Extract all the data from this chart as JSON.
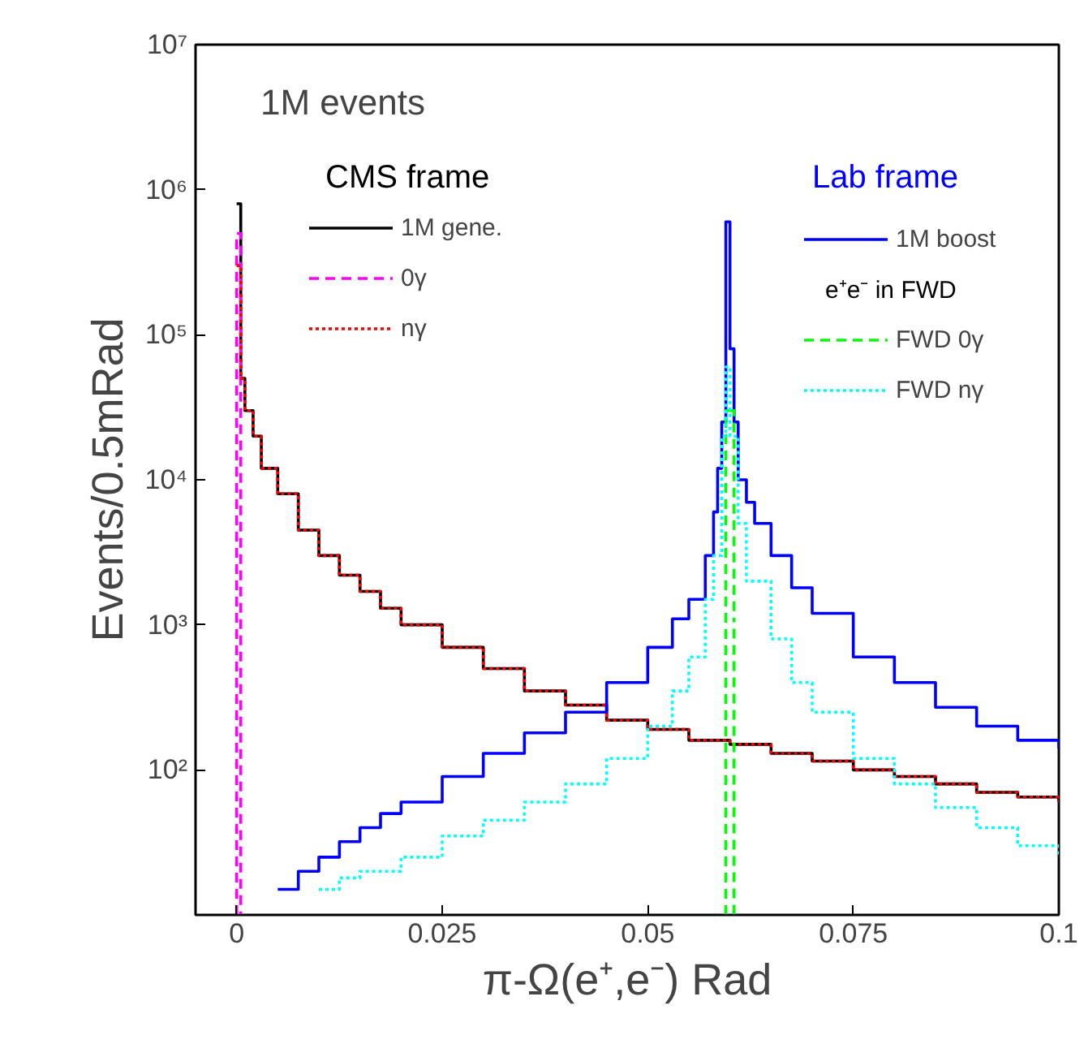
{
  "chart_data": {
    "type": "step",
    "title": "1M events",
    "xlabel": "π-Ω(e⁺,e⁻) Rad",
    "ylabel": "Events/0.5mRad",
    "log": "y",
    "xlim": [
      -0.005,
      0.1
    ],
    "ylim": [
      10,
      10000000
    ],
    "xticks": [
      0,
      0.025,
      0.05,
      0.075,
      0.1
    ],
    "yticks": [
      {
        "value": 100,
        "label": "10²"
      },
      {
        "value": 1000,
        "label": "10³"
      },
      {
        "value": 10000,
        "label": "10⁴"
      },
      {
        "value": 100000,
        "label": "10⁵"
      },
      {
        "value": 1000000,
        "label": "10⁶"
      },
      {
        "value": 10000000,
        "label": "10⁷"
      }
    ],
    "grid": false,
    "legend": "top",
    "marker": "none",
    "annotations": [
      "CMS frame",
      "Lab frame",
      "e⁺e⁻ in FWD"
    ],
    "series": [
      {
        "name": "1M gene.",
        "color": "#000000",
        "line_style": "solid",
        "x": [
          0,
          0.0005,
          0.001,
          0.002,
          0.003,
          0.005,
          0.0075,
          0.01,
          0.0125,
          0.015,
          0.0175,
          0.02,
          0.025,
          0.03,
          0.035,
          0.04,
          0.045,
          0.05,
          0.055,
          0.06,
          0.065,
          0.07,
          0.075,
          0.08,
          0.085,
          0.09,
          0.095,
          0.1
        ],
        "values": [
          800000,
          50000,
          30000,
          20000,
          12000,
          8000,
          4500,
          3000,
          2200,
          1700,
          1300,
          1000,
          700,
          500,
          350,
          280,
          220,
          190,
          160,
          150,
          130,
          115,
          100,
          90,
          80,
          70,
          65,
          60
        ]
      },
      {
        "name": "0γ",
        "color": "#ff00ff",
        "line_style": "dashed",
        "type": "histogram",
        "bins": [
          0,
          0.0005
        ],
        "values": [
          500000
        ]
      },
      {
        "name": "nγ",
        "color": "#ff0000",
        "line_style": "dotted",
        "x": [
          0,
          0.0005,
          0.001,
          0.002,
          0.003,
          0.005,
          0.0075,
          0.01,
          0.0125,
          0.015,
          0.0175,
          0.02,
          0.025,
          0.03,
          0.035,
          0.04,
          0.045,
          0.05,
          0.055,
          0.06,
          0.065,
          0.07,
          0.075,
          0.08,
          0.085,
          0.09,
          0.095,
          0.1
        ],
        "values": [
          300000,
          50000,
          30000,
          20000,
          12000,
          8000,
          4500,
          3000,
          2200,
          1700,
          1300,
          1000,
          700,
          500,
          350,
          280,
          220,
          190,
          160,
          150,
          130,
          115,
          100,
          90,
          80,
          70,
          65,
          60
        ]
      },
      {
        "name": "1M boost",
        "color": "#0000ff",
        "line_style": "solid",
        "x": [
          0.005,
          0.0075,
          0.01,
          0.0125,
          0.015,
          0.0175,
          0.02,
          0.025,
          0.03,
          0.035,
          0.04,
          0.045,
          0.05,
          0.053,
          0.055,
          0.057,
          0.058,
          0.0585,
          0.059,
          0.0595,
          0.06,
          0.0605,
          0.061,
          0.062,
          0.063,
          0.065,
          0.0675,
          0.07,
          0.075,
          0.08,
          0.085,
          0.09,
          0.095,
          0.1
        ],
        "values": [
          15,
          20,
          25,
          32,
          40,
          50,
          60,
          90,
          130,
          180,
          250,
          400,
          700,
          1100,
          1500,
          3000,
          6000,
          12000,
          25000,
          600000,
          80000,
          25000,
          10000,
          7000,
          5000,
          3000,
          1800,
          1200,
          600,
          400,
          270,
          200,
          160,
          140
        ]
      },
      {
        "name": "FWD 0γ",
        "color": "#00ff00",
        "line_style": "dashed",
        "type": "histogram",
        "bins": [
          0.0595,
          0.06,
          0.0605
        ],
        "values": [
          30000,
          30000
        ]
      },
      {
        "name": "FWD nγ",
        "color": "#00ffff",
        "line_style": "dotted",
        "x": [
          0.01,
          0.0125,
          0.015,
          0.02,
          0.025,
          0.03,
          0.035,
          0.04,
          0.045,
          0.05,
          0.053,
          0.055,
          0.057,
          0.058,
          0.059,
          0.0595,
          0.06,
          0.061,
          0.062,
          0.065,
          0.0675,
          0.07,
          0.075,
          0.08,
          0.085,
          0.09,
          0.095,
          0.1
        ],
        "values": [
          15,
          18,
          20,
          25,
          35,
          45,
          60,
          80,
          120,
          200,
          350,
          600,
          1500,
          3000,
          20000,
          60000,
          20000,
          5000,
          2000,
          800,
          400,
          250,
          120,
          80,
          55,
          40,
          30,
          25
        ]
      }
    ]
  }
}
